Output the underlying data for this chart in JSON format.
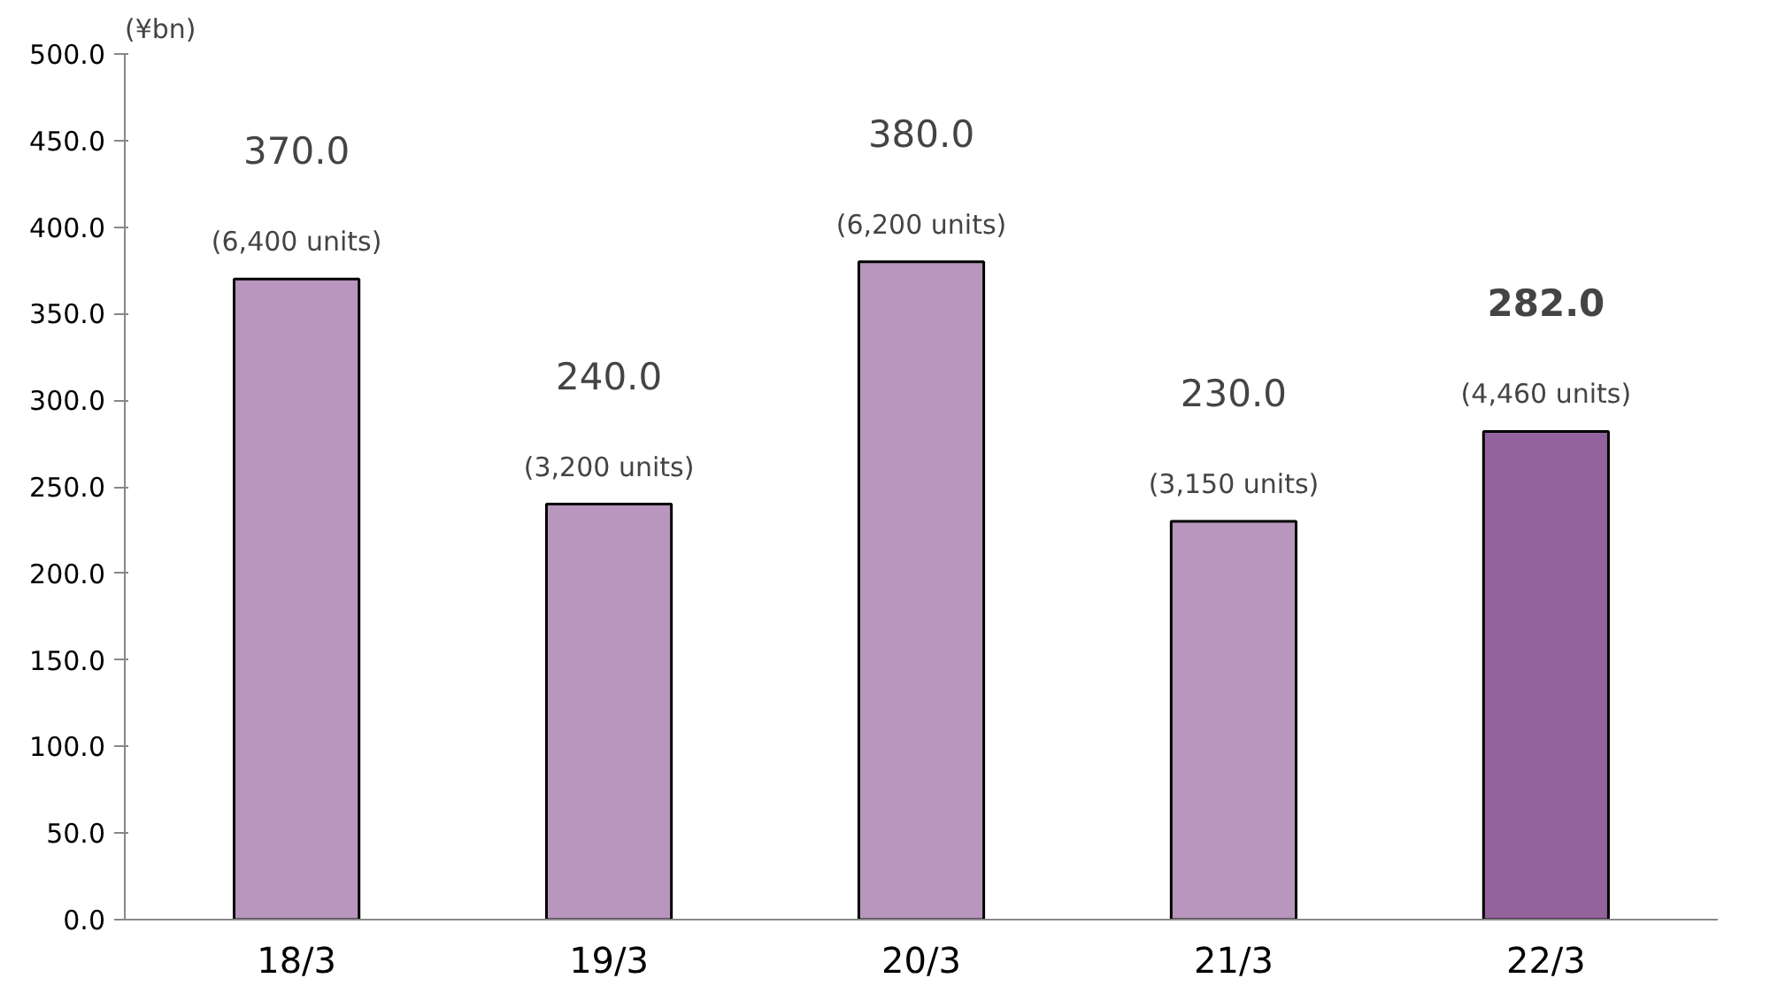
{
  "chart_data": {
    "type": "bar",
    "ylabel": "(¥bn)",
    "categories": [
      "18/3",
      "19/3",
      "20/3",
      "21/3",
      "22/3"
    ],
    "values": [
      370.0,
      240.0,
      380.0,
      230.0,
      282.0
    ],
    "colors": [
      "#b896bd",
      "#b896bd",
      "#b896bd",
      "#b896bd",
      "#93639d"
    ],
    "value_labels": [
      "370.0",
      "240.0",
      "380.0",
      "230.0",
      "282.0"
    ],
    "ylim": [
      0,
      500
    ],
    "yticks": [
      {
        "value": 0,
        "label": "0.0"
      },
      {
        "value": 50,
        "label": "50.0"
      },
      {
        "value": 100,
        "label": "100.0"
      },
      {
        "value": 150,
        "label": "150.0"
      },
      {
        "value": 200,
        "label": "200.0"
      },
      {
        "value": 250,
        "label": "250.0"
      },
      {
        "value": 300,
        "label": "300.0"
      },
      {
        "value": 350,
        "label": "350.0"
      },
      {
        "value": 400,
        "label": "400.0"
      },
      {
        "value": 450,
        "label": "450.0"
      },
      {
        "value": 500,
        "label": "500.0"
      }
    ],
    "grid": false,
    "annotations": [
      {
        "text": "(6,400 units)",
        "x": "18/3",
        "y": 370.0
      },
      {
        "text": "(3,200 units)",
        "x": "19/3",
        "y": 240.0
      },
      {
        "text": "(6,200 units)",
        "x": "20/3",
        "y": 380.0
      },
      {
        "text": "(3,150 units)",
        "x": "21/3",
        "y": 230.0
      },
      {
        "text": "(4,460 units)",
        "x": "22/3",
        "y": 282.0
      }
    ]
  }
}
